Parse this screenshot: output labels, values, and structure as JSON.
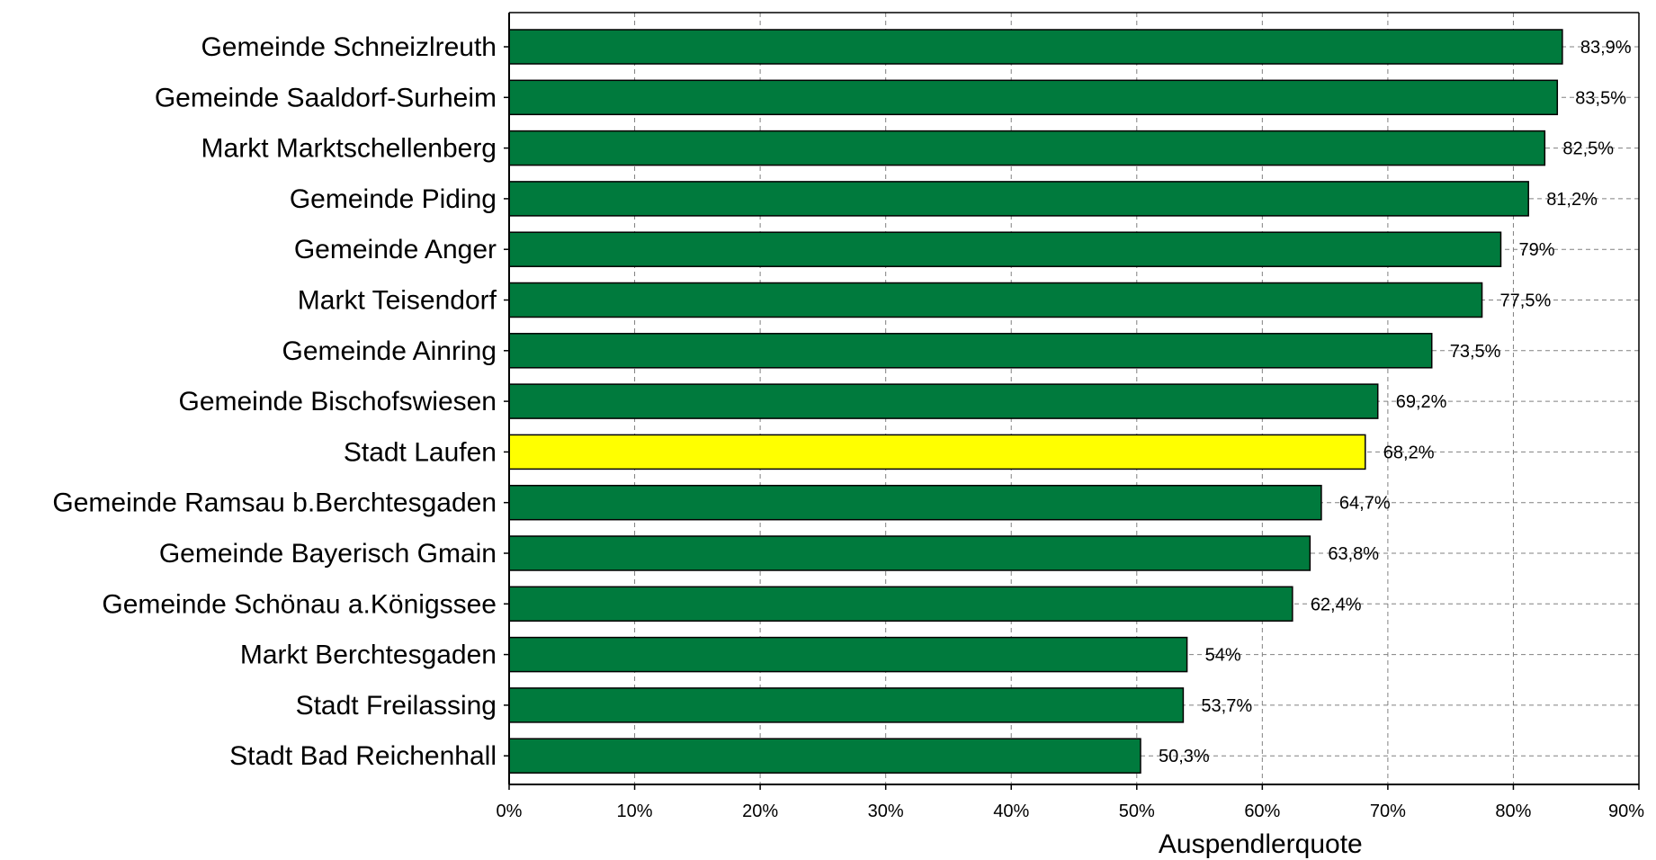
{
  "chart_data": {
    "type": "bar",
    "orientation": "horizontal",
    "categories": [
      "Gemeinde Schneizlreuth",
      "Gemeinde Saaldorf-Surheim",
      "Markt Marktschellenberg",
      "Gemeinde Piding",
      "Gemeinde Anger",
      "Markt Teisendorf",
      "Gemeinde Ainring",
      "Gemeinde Bischofswiesen",
      "Stadt Laufen",
      "Gemeinde Ramsau b.Berchtesgaden",
      "Gemeinde Bayerisch Gmain",
      "Gemeinde Schönau a.Königssee",
      "Markt Berchtesgaden",
      "Stadt Freilassing",
      "Stadt Bad Reichenhall"
    ],
    "values": [
      83.9,
      83.5,
      82.5,
      81.2,
      79,
      77.5,
      73.5,
      69.2,
      68.2,
      64.7,
      63.8,
      62.4,
      54,
      53.7,
      50.3
    ],
    "value_labels": [
      "83,9%",
      "83,5%",
      "82,5%",
      "81,2%",
      "79%",
      "77,5%",
      "73,5%",
      "69,2%",
      "68,2%",
      "64,7%",
      "63,8%",
      "62,4%",
      "54%",
      "53,7%",
      "50,3%"
    ],
    "highlight_index": 8,
    "xlabel": "Auspendlerquote",
    "ylabel": "",
    "xlim": [
      0,
      90
    ],
    "x_ticks": [
      "0%",
      "10%",
      "20%",
      "30%",
      "40%",
      "50%",
      "60%",
      "70%",
      "80%",
      "90%"
    ],
    "grid": "dashed vertical and horizontal",
    "legend": "none",
    "colors": {
      "bar": "#007a3d",
      "highlight": "#ffff00",
      "bar_outline": "#000000",
      "grid": "#808080"
    }
  }
}
